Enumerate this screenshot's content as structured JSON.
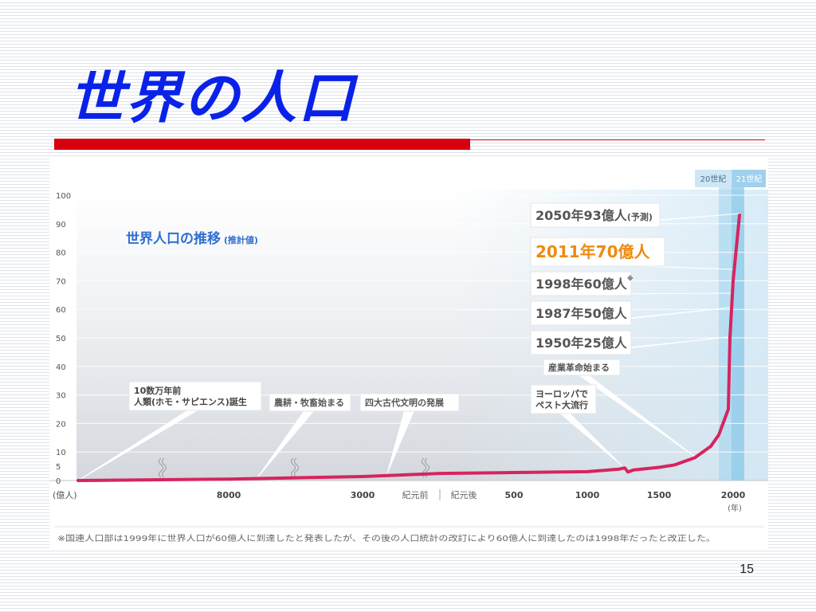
{
  "slide": {
    "title": "世界の人口",
    "page_number": "15"
  },
  "colors": {
    "title": "#0a22e8",
    "title_bar": "#d8000f",
    "series_line": "#d6245e",
    "callout_orange": "#ee8a12",
    "callout_text": "#555555",
    "era_band": "#9fd3ee",
    "era_band_dark": "#7cc3e6"
  },
  "chart_data": {
    "type": "line",
    "title": "世界人口の推移",
    "title_note": "(推計値)",
    "y_unit": "(億人)",
    "x_unit": "(年)",
    "ylim": [
      0,
      100
    ],
    "y_ticks": [
      "100",
      "90",
      "80",
      "70",
      "60",
      "50",
      "40",
      "30",
      "20",
      "10",
      "5",
      "0"
    ],
    "x_ticks": [
      "8000",
      "3000",
      "紀元前",
      "紀元後",
      "500",
      "1000",
      "1500",
      "2000"
    ],
    "grid": true,
    "era_labels": [
      "20世紀",
      "21世紀"
    ],
    "series": [
      {
        "points": [
          {
            "x": "10数万年前",
            "y": 0
          },
          {
            "x": "紀元前8000年",
            "y": 0.5
          },
          {
            "x": "紀元前3000年",
            "y": 1.4
          },
          {
            "x": "紀元前後",
            "y": 2.5
          },
          {
            "x": "500年",
            "y": 2.8
          },
          {
            "x": "1000年",
            "y": 3.1
          },
          {
            "x": "1250年",
            "y": 4
          },
          {
            "x": "1340年",
            "y": 4.4
          },
          {
            "x": "1350年",
            "y": 3
          },
          {
            "x": "1400年",
            "y": 3.7
          },
          {
            "x": "1500年",
            "y": 4.6
          },
          {
            "x": "1600年",
            "y": 5.5
          },
          {
            "x": "1750年",
            "y": 8
          },
          {
            "x": "1850年",
            "y": 12
          },
          {
            "x": "1900年",
            "y": 16
          },
          {
            "x": "1950年",
            "y": 25
          },
          {
            "x": "1987年",
            "y": 50
          },
          {
            "x": "1998年",
            "y": 60
          },
          {
            "x": "2011年",
            "y": 70
          },
          {
            "x": "2050年",
            "y": 93
          }
        ]
      }
    ],
    "callouts": [
      {
        "label": "2050年93億人",
        "note": "(予測)"
      },
      {
        "label": "2011年70億人"
      },
      {
        "label": "1998年60億人",
        "mark": "※"
      },
      {
        "label": "1987年50億人"
      },
      {
        "label": "1950年25億人"
      },
      {
        "label": "産業革命始まる"
      },
      {
        "lines": [
          "ヨーロッパで",
          "ペスト大流行"
        ]
      },
      {
        "lines": [
          "10数万年前",
          "人類(ホモ・サピエンス)誕生"
        ]
      },
      {
        "label": "農耕・牧畜始まる"
      },
      {
        "label": "四大古代文明の発展"
      }
    ],
    "footnote": "※国連人口部は1999年に世界人口が60億人に到達したと発表したが、その後の人口統計の改訂により60億人に到達したのは1998年だったと改正した。"
  }
}
